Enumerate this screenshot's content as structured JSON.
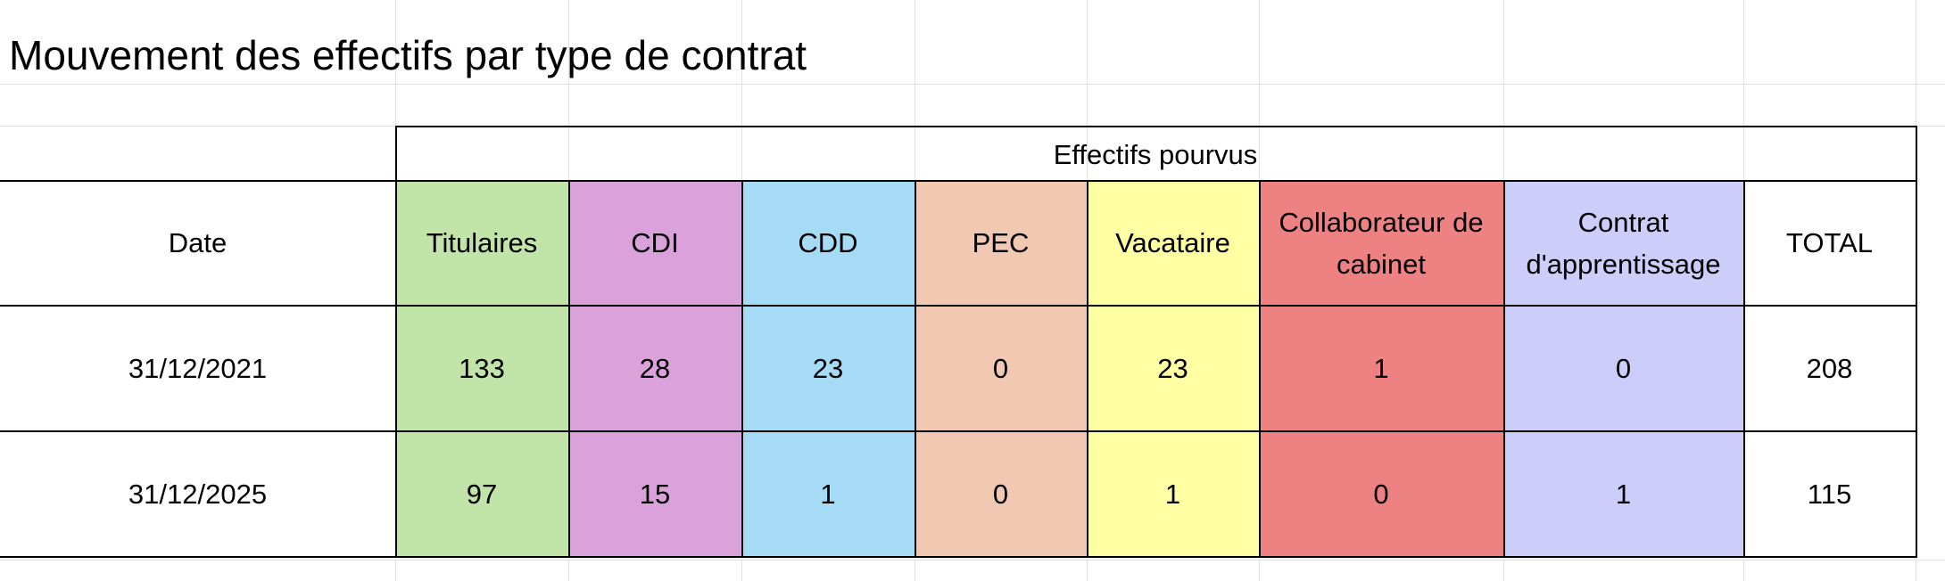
{
  "title": "Mouvement des effectifs par type de contrat",
  "table": {
    "group_header": "Effectifs pourvus",
    "date_header": "Date",
    "columns": [
      {
        "key": "titulaires",
        "label": "Titulaires",
        "color": "#c1e5a8"
      },
      {
        "key": "cdi",
        "label": "CDI",
        "color": "#dba1da"
      },
      {
        "key": "cdd",
        "label": "CDD",
        "color": "#a6dbf5"
      },
      {
        "key": "pec",
        "label": "PEC",
        "color": "#f1c8b1"
      },
      {
        "key": "vacataire",
        "label": "Vacataire",
        "color": "#ffffa3"
      },
      {
        "key": "collaborateur",
        "label": "Collaborateur de cabinet",
        "color": "#ee8282"
      },
      {
        "key": "apprentissage",
        "label": "Contrat d'apprentissage",
        "color": "#cccdf9"
      },
      {
        "key": "total",
        "label": "TOTAL",
        "color": "#ffffff"
      }
    ],
    "rows": [
      {
        "date": "31/12/2021",
        "values": [
          "133",
          "28",
          "23",
          "0",
          "23",
          "1",
          "0",
          "208"
        ]
      },
      {
        "date": "31/12/2025",
        "values": [
          "97",
          "15",
          "1",
          "0",
          "1",
          "0",
          "1",
          "115"
        ]
      }
    ]
  }
}
